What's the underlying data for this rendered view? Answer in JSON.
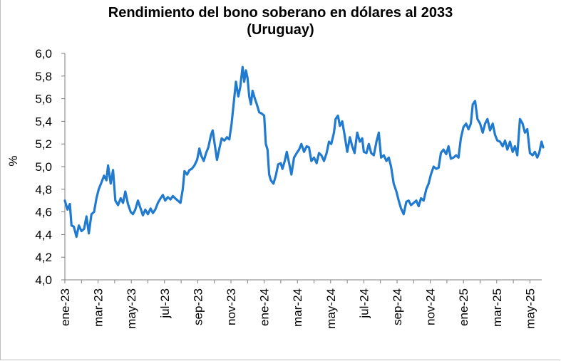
{
  "chart_data": {
    "type": "line",
    "title_line1": "Rendimiento del bono soberano en dólares al 2033",
    "title_line2": "(Uruguay)",
    "ylabel": "%",
    "xlabel": "",
    "ylim": [
      4.0,
      6.0
    ],
    "yticks": [
      "4,0",
      "4,2",
      "4,4",
      "4,6",
      "4,8",
      "5,0",
      "5,2",
      "5,4",
      "5,6",
      "5,8",
      "6,0"
    ],
    "xticks": [
      "ene-23",
      "mar-23",
      "may-23",
      "jul-23",
      "sep-23",
      "nov-23",
      "ene-24",
      "mar-24",
      "may-24",
      "jul-24",
      "sep-24",
      "nov-24",
      "ene-25",
      "mar-25",
      "may-25"
    ],
    "grid": false,
    "legend": "none",
    "color": "#1f7ad0",
    "series": [
      {
        "values": [
          [
            0,
            4.7
          ],
          [
            0.08,
            4.62
          ],
          [
            0.15,
            4.67
          ],
          [
            0.2,
            4.48
          ],
          [
            0.27,
            4.47
          ],
          [
            0.35,
            4.38
          ],
          [
            0.42,
            4.48
          ],
          [
            0.5,
            4.43
          ],
          [
            0.58,
            4.45
          ],
          [
            0.65,
            4.56
          ],
          [
            0.72,
            4.41
          ],
          [
            0.8,
            4.58
          ],
          [
            0.88,
            4.6
          ],
          [
            0.95,
            4.72
          ],
          [
            1.02,
            4.8
          ],
          [
            1.1,
            4.86
          ],
          [
            1.18,
            4.92
          ],
          [
            1.25,
            4.88
          ],
          [
            1.3,
            5.01
          ],
          [
            1.38,
            4.85
          ],
          [
            1.45,
            4.97
          ],
          [
            1.52,
            4.7
          ],
          [
            1.6,
            4.66
          ],
          [
            1.68,
            4.72
          ],
          [
            1.75,
            4.68
          ],
          [
            1.82,
            4.78
          ],
          [
            1.9,
            4.67
          ],
          [
            1.98,
            4.6
          ],
          [
            2.05,
            4.58
          ],
          [
            2.12,
            4.62
          ],
          [
            2.2,
            4.7
          ],
          [
            2.28,
            4.63
          ],
          [
            2.35,
            4.57
          ],
          [
            2.42,
            4.62
          ],
          [
            2.5,
            4.58
          ],
          [
            2.58,
            4.63
          ],
          [
            2.65,
            4.59
          ],
          [
            2.72,
            4.62
          ],
          [
            2.8,
            4.68
          ],
          [
            2.88,
            4.72
          ],
          [
            2.95,
            4.75
          ],
          [
            3.02,
            4.7
          ],
          [
            3.1,
            4.73
          ],
          [
            3.18,
            4.71
          ],
          [
            3.25,
            4.74
          ],
          [
            3.32,
            4.72
          ],
          [
            3.4,
            4.7
          ],
          [
            3.48,
            4.68
          ],
          [
            3.55,
            4.8
          ],
          [
            3.6,
            4.96
          ],
          [
            3.68,
            4.93
          ],
          [
            3.75,
            4.97
          ],
          [
            3.82,
            4.98
          ],
          [
            3.9,
            5.01
          ],
          [
            3.98,
            5.06
          ],
          [
            4.05,
            5.16
          ],
          [
            4.1,
            5.1
          ],
          [
            4.18,
            5.05
          ],
          [
            4.25,
            5.12
          ],
          [
            4.32,
            5.17
          ],
          [
            4.4,
            5.28
          ],
          [
            4.45,
            5.32
          ],
          [
            4.52,
            5.18
          ],
          [
            4.58,
            5.06
          ],
          [
            4.65,
            5.16
          ],
          [
            4.72,
            5.25
          ],
          [
            4.8,
            5.23
          ],
          [
            4.88,
            5.26
          ],
          [
            4.95,
            5.24
          ],
          [
            5.02,
            5.38
          ],
          [
            5.08,
            5.55
          ],
          [
            5.15,
            5.75
          ],
          [
            5.22,
            5.62
          ],
          [
            5.28,
            5.7
          ],
          [
            5.35,
            5.88
          ],
          [
            5.4,
            5.75
          ],
          [
            5.45,
            5.85
          ],
          [
            5.5,
            5.78
          ],
          [
            5.55,
            5.62
          ],
          [
            5.6,
            5.55
          ],
          [
            5.65,
            5.67
          ],
          [
            5.72,
            5.6
          ],
          [
            5.78,
            5.55
          ],
          [
            5.85,
            5.48
          ],
          [
            5.92,
            5.47
          ],
          [
            6.0,
            5.45
          ],
          [
            6.05,
            5.2
          ],
          [
            6.1,
            5.15
          ],
          [
            6.15,
            4.93
          ],
          [
            6.2,
            4.88
          ],
          [
            6.28,
            4.85
          ],
          [
            6.35,
            4.92
          ],
          [
            6.42,
            5.02
          ],
          [
            6.5,
            5.03
          ],
          [
            6.55,
            4.98
          ],
          [
            6.62,
            5.05
          ],
          [
            6.68,
            5.13
          ],
          [
            6.75,
            5.03
          ],
          [
            6.82,
            4.93
          ],
          [
            6.9,
            5.08
          ],
          [
            6.98,
            5.12
          ],
          [
            7.05,
            5.15
          ],
          [
            7.12,
            5.2
          ],
          [
            7.2,
            5.13
          ],
          [
            7.28,
            5.18
          ],
          [
            7.35,
            5.17
          ],
          [
            7.42,
            5.05
          ],
          [
            7.5,
            5.08
          ],
          [
            7.58,
            5.03
          ],
          [
            7.65,
            5.12
          ],
          [
            7.72,
            5.1
          ],
          [
            7.8,
            5.05
          ],
          [
            7.88,
            5.12
          ],
          [
            7.95,
            5.22
          ],
          [
            8.02,
            5.2
          ],
          [
            8.1,
            5.3
          ],
          [
            8.15,
            5.42
          ],
          [
            8.22,
            5.45
          ],
          [
            8.28,
            5.36
          ],
          [
            8.35,
            5.4
          ],
          [
            8.42,
            5.28
          ],
          [
            8.5,
            5.13
          ],
          [
            8.58,
            5.26
          ],
          [
            8.65,
            5.18
          ],
          [
            8.72,
            5.12
          ],
          [
            8.8,
            5.3
          ],
          [
            8.88,
            5.22
          ],
          [
            8.95,
            5.25
          ],
          [
            9.0,
            5.13
          ],
          [
            9.08,
            5.12
          ],
          [
            9.15,
            5.2
          ],
          [
            9.22,
            5.12
          ],
          [
            9.3,
            5.1
          ],
          [
            9.38,
            5.22
          ],
          [
            9.45,
            5.3
          ],
          [
            9.52,
            5.08
          ],
          [
            9.6,
            5.1
          ],
          [
            9.68,
            5.05
          ],
          [
            9.75,
            5.08
          ],
          [
            9.82,
            5.0
          ],
          [
            9.9,
            4.85
          ],
          [
            9.98,
            4.78
          ],
          [
            10.05,
            4.7
          ],
          [
            10.12,
            4.63
          ],
          [
            10.2,
            4.58
          ],
          [
            10.28,
            4.69
          ],
          [
            10.35,
            4.7
          ],
          [
            10.42,
            4.66
          ],
          [
            10.5,
            4.68
          ],
          [
            10.58,
            4.7
          ],
          [
            10.65,
            4.65
          ],
          [
            10.72,
            4.72
          ],
          [
            10.8,
            4.7
          ],
          [
            10.88,
            4.8
          ],
          [
            10.95,
            4.85
          ],
          [
            11.02,
            4.93
          ],
          [
            11.1,
            5.0
          ],
          [
            11.18,
            4.98
          ],
          [
            11.25,
            4.99
          ],
          [
            11.32,
            5.12
          ],
          [
            11.4,
            5.15
          ],
          [
            11.48,
            5.11
          ],
          [
            11.55,
            5.18
          ],
          [
            11.62,
            5.07
          ],
          [
            11.7,
            5.08
          ],
          [
            11.78,
            5.1
          ],
          [
            11.85,
            5.08
          ],
          [
            11.92,
            5.25
          ],
          [
            12.0,
            5.35
          ],
          [
            12.08,
            5.38
          ],
          [
            12.15,
            5.33
          ],
          [
            12.22,
            5.38
          ],
          [
            12.28,
            5.55
          ],
          [
            12.35,
            5.58
          ],
          [
            12.42,
            5.42
          ],
          [
            12.5,
            5.38
          ],
          [
            12.58,
            5.3
          ],
          [
            12.65,
            5.38
          ],
          [
            12.72,
            5.42
          ],
          [
            12.8,
            5.32
          ],
          [
            12.88,
            5.38
          ],
          [
            12.95,
            5.28
          ],
          [
            13.02,
            5.23
          ],
          [
            13.1,
            5.22
          ],
          [
            13.18,
            5.18
          ],
          [
            13.25,
            5.23
          ],
          [
            13.32,
            5.15
          ],
          [
            13.4,
            5.22
          ],
          [
            13.48,
            5.13
          ],
          [
            13.55,
            5.18
          ],
          [
            13.62,
            5.1
          ],
          [
            13.7,
            5.42
          ],
          [
            13.78,
            5.38
          ],
          [
            13.85,
            5.3
          ],
          [
            13.92,
            5.33
          ],
          [
            14.0,
            5.12
          ],
          [
            14.08,
            5.1
          ],
          [
            14.15,
            5.13
          ],
          [
            14.22,
            5.08
          ],
          [
            14.28,
            5.12
          ],
          [
            14.35,
            5.22
          ],
          [
            14.4,
            5.17
          ]
        ]
      }
    ]
  }
}
